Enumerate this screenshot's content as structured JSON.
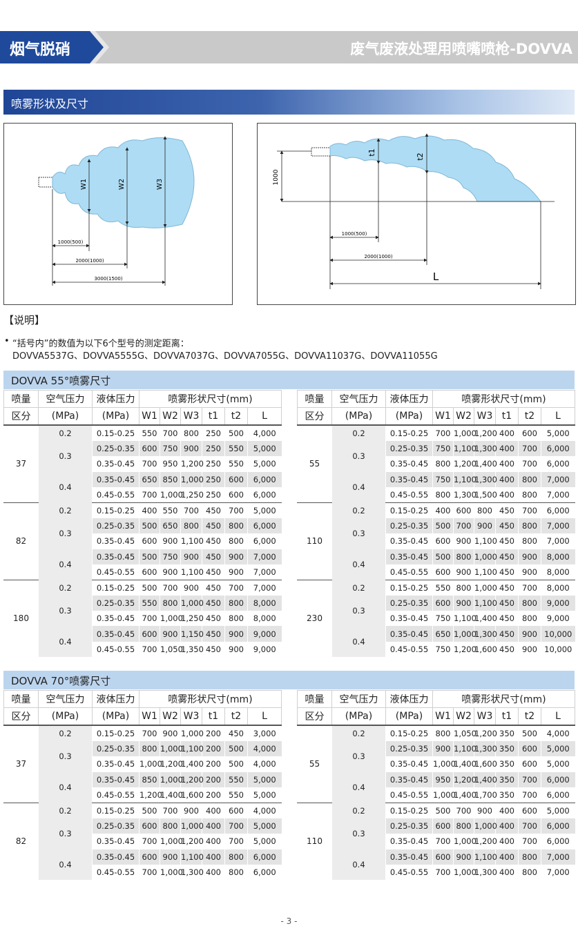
{
  "header": {
    "left_title": "烟气脱硝",
    "right_title": "废气废液处理用喷嘴喷枪-DOVVA"
  },
  "section_title": "喷雾形状及尺寸",
  "diagrams": {
    "left": {
      "w1": "W1",
      "w2": "W2",
      "w3": "W3",
      "d1": "1000(500)",
      "d2": "2000(1000)",
      "d3": "3000(1500)"
    },
    "right": {
      "height": "1000",
      "t1": "t1",
      "t2": "t2",
      "d1": "1000(500)",
      "d2": "2000(1000)",
      "l": "L"
    }
  },
  "notes": {
    "heading": "【说明】",
    "bullet": "“括号内”的数值为以下6个型号的测定距离：",
    "models": "DOVVA5537G、DOVVA5555G、DOVVA7037G、DOVVA7055G、DOVVA11037G、DOVVA11055G"
  },
  "tables": [
    {
      "title": "DOVVA 55°喷雾尺寸",
      "header_row1": [
        "喷量",
        "空气压力",
        "液体压力",
        "喷雾形状尺寸(mm)"
      ],
      "header_row2": [
        "区分",
        "(MPa)",
        "(MPa)",
        "W1",
        "W2",
        "W3",
        "t1",
        "t2",
        "L"
      ],
      "left": [
        {
          "flow": "37",
          "pressures": [
            {
              "air": "0.2",
              "rows": [
                [
                  "0.15-0.25",
                  "550",
                  "700",
                  "800",
                  "250",
                  "500",
                  "4,000"
                ]
              ]
            },
            {
              "air": "0.3",
              "rows": [
                [
                  "0.25-0.35",
                  "600",
                  "750",
                  "900",
                  "250",
                  "550",
                  "5,000"
                ],
                [
                  "0.35-0.45",
                  "700",
                  "950",
                  "1,200",
                  "250",
                  "550",
                  "5,000"
                ]
              ]
            },
            {
              "air": "0.4",
              "rows": [
                [
                  "0.35-0.45",
                  "650",
                  "850",
                  "1,000",
                  "250",
                  "600",
                  "6,000"
                ],
                [
                  "0.45-0.55",
                  "700",
                  "1,000",
                  "1,250",
                  "250",
                  "600",
                  "6,000"
                ]
              ]
            }
          ]
        },
        {
          "flow": "82",
          "pressures": [
            {
              "air": "0.2",
              "rows": [
                [
                  "0.15-0.25",
                  "400",
                  "550",
                  "700",
                  "450",
                  "700",
                  "5,000"
                ]
              ]
            },
            {
              "air": "0.3",
              "rows": [
                [
                  "0.25-0.35",
                  "500",
                  "650",
                  "800",
                  "450",
                  "800",
                  "6,000"
                ],
                [
                  "0.35-0.45",
                  "600",
                  "900",
                  "1,100",
                  "450",
                  "800",
                  "6,000"
                ]
              ]
            },
            {
              "air": "0.4",
              "rows": [
                [
                  "0.35-0.45",
                  "500",
                  "750",
                  "900",
                  "450",
                  "900",
                  "7,000"
                ],
                [
                  "0.45-0.55",
                  "600",
                  "900",
                  "1,100",
                  "450",
                  "900",
                  "7,000"
                ]
              ]
            }
          ]
        },
        {
          "flow": "180",
          "pressures": [
            {
              "air": "0.2",
              "rows": [
                [
                  "0.15-0.25",
                  "500",
                  "700",
                  "900",
                  "450",
                  "700",
                  "7,000"
                ]
              ]
            },
            {
              "air": "0.3",
              "rows": [
                [
                  "0.25-0.35",
                  "550",
                  "800",
                  "1,000",
                  "450",
                  "800",
                  "8,000"
                ],
                [
                  "0.35-0.45",
                  "700",
                  "1,000",
                  "1,250",
                  "450",
                  "800",
                  "8,000"
                ]
              ]
            },
            {
              "air": "0.4",
              "rows": [
                [
                  "0.35-0.45",
                  "600",
                  "900",
                  "1,150",
                  "450",
                  "900",
                  "9,000"
                ],
                [
                  "0.45-0.55",
                  "700",
                  "1,050",
                  "1,350",
                  "450",
                  "900",
                  "9,000"
                ]
              ]
            }
          ]
        }
      ],
      "right": [
        {
          "flow": "55",
          "pressures": [
            {
              "air": "0.2",
              "rows": [
                [
                  "0.15-0.25",
                  "700",
                  "1,000",
                  "1,200",
                  "400",
                  "600",
                  "5,000"
                ]
              ]
            },
            {
              "air": "0.3",
              "rows": [
                [
                  "0.25-0.35",
                  "750",
                  "1,100",
                  "1,300",
                  "400",
                  "700",
                  "6,000"
                ],
                [
                  "0.35-0.45",
                  "800",
                  "1,200",
                  "1,400",
                  "400",
                  "700",
                  "6,000"
                ]
              ]
            },
            {
              "air": "0.4",
              "rows": [
                [
                  "0.35-0.45",
                  "750",
                  "1,100",
                  "1,300",
                  "400",
                  "800",
                  "7,000"
                ],
                [
                  "0.45-0.55",
                  "800",
                  "1,300",
                  "1,500",
                  "400",
                  "800",
                  "7,000"
                ]
              ]
            }
          ]
        },
        {
          "flow": "110",
          "pressures": [
            {
              "air": "0.2",
              "rows": [
                [
                  "0.15-0.25",
                  "400",
                  "600",
                  "800",
                  "450",
                  "700",
                  "6,000"
                ]
              ]
            },
            {
              "air": "0.3",
              "rows": [
                [
                  "0.25-0.35",
                  "500",
                  "700",
                  "900",
                  "450",
                  "800",
                  "7,000"
                ],
                [
                  "0.35-0.45",
                  "600",
                  "900",
                  "1,100",
                  "450",
                  "800",
                  "7,000"
                ]
              ]
            },
            {
              "air": "0.4",
              "rows": [
                [
                  "0.35-0.45",
                  "500",
                  "800",
                  "1,000",
                  "450",
                  "900",
                  "8,000"
                ],
                [
                  "0.45-0.55",
                  "600",
                  "900",
                  "1,100",
                  "450",
                  "900",
                  "8,000"
                ]
              ]
            }
          ]
        },
        {
          "flow": "230",
          "pressures": [
            {
              "air": "0.2",
              "rows": [
                [
                  "0.15-0.25",
                  "550",
                  "800",
                  "1,000",
                  "450",
                  "700",
                  "8,000"
                ]
              ]
            },
            {
              "air": "0.3",
              "rows": [
                [
                  "0.25-0.35",
                  "600",
                  "900",
                  "1,100",
                  "450",
                  "800",
                  "9,000"
                ],
                [
                  "0.35-0.45",
                  "750",
                  "1,100",
                  "1,400",
                  "450",
                  "800",
                  "9,000"
                ]
              ]
            },
            {
              "air": "0.4",
              "rows": [
                [
                  "0.35-0.45",
                  "650",
                  "1,000",
                  "1,300",
                  "450",
                  "900",
                  "10,000"
                ],
                [
                  "0.45-0.55",
                  "750",
                  "1,200",
                  "1,600",
                  "450",
                  "900",
                  "10,000"
                ]
              ]
            }
          ]
        }
      ]
    },
    {
      "title": "DOVVA 70°喷雾尺寸",
      "header_row1": [
        "喷量",
        "空气压力",
        "液体压力",
        "喷雾形状尺寸(mm)"
      ],
      "header_row2": [
        "区分",
        "(MPa)",
        "(MPa)",
        "W1",
        "W2",
        "W3",
        "t1",
        "t2",
        "L"
      ],
      "left": [
        {
          "flow": "37",
          "pressures": [
            {
              "air": "0.2",
              "rows": [
                [
                  "0.15-0.25",
                  "700",
                  "900",
                  "1,000",
                  "200",
                  "450",
                  "3,000"
                ]
              ]
            },
            {
              "air": "0.3",
              "rows": [
                [
                  "0.25-0.35",
                  "800",
                  "1,000",
                  "1,100",
                  "200",
                  "500",
                  "4,000"
                ],
                [
                  "0.35-0.45",
                  "1,000",
                  "1,200",
                  "1,400",
                  "200",
                  "500",
                  "4,000"
                ]
              ]
            },
            {
              "air": "0.4",
              "rows": [
                [
                  "0.35-0.45",
                  "850",
                  "1,000",
                  "1,200",
                  "200",
                  "550",
                  "5,000"
                ],
                [
                  "0.45-0.55",
                  "1,200",
                  "1,400",
                  "1,600",
                  "200",
                  "550",
                  "5,000"
                ]
              ]
            }
          ]
        },
        {
          "flow": "82",
          "pressures": [
            {
              "air": "0.2",
              "rows": [
                [
                  "0.15-0.25",
                  "500",
                  "700",
                  "900",
                  "400",
                  "600",
                  "4,000"
                ]
              ]
            },
            {
              "air": "0.3",
              "rows": [
                [
                  "0.25-0.35",
                  "600",
                  "800",
                  "1,000",
                  "400",
                  "700",
                  "5,000"
                ],
                [
                  "0.35-0.45",
                  "700",
                  "1,000",
                  "1,200",
                  "400",
                  "700",
                  "5,000"
                ]
              ]
            },
            {
              "air": "0.4",
              "rows": [
                [
                  "0.35-0.45",
                  "600",
                  "900",
                  "1,100",
                  "400",
                  "800",
                  "6,000"
                ],
                [
                  "0.45-0.55",
                  "700",
                  "1,000",
                  "1,300",
                  "400",
                  "800",
                  "6,000"
                ]
              ]
            }
          ]
        }
      ],
      "right": [
        {
          "flow": "55",
          "pressures": [
            {
              "air": "0.2",
              "rows": [
                [
                  "0.15-0.25",
                  "800",
                  "1,050",
                  "1,200",
                  "350",
                  "500",
                  "4,000"
                ]
              ]
            },
            {
              "air": "0.3",
              "rows": [
                [
                  "0.25-0.35",
                  "900",
                  "1,100",
                  "1,300",
                  "350",
                  "600",
                  "5,000"
                ],
                [
                  "0.35-0.45",
                  "1,000",
                  "1,400",
                  "1,600",
                  "350",
                  "600",
                  "5,000"
                ]
              ]
            },
            {
              "air": "0.4",
              "rows": [
                [
                  "0.35-0.45",
                  "950",
                  "1,200",
                  "1,400",
                  "350",
                  "700",
                  "6,000"
                ],
                [
                  "0.45-0.55",
                  "1,000",
                  "1,400",
                  "1,700",
                  "350",
                  "700",
                  "6,000"
                ]
              ]
            }
          ]
        },
        {
          "flow": "110",
          "pressures": [
            {
              "air": "0.2",
              "rows": [
                [
                  "0.15-0.25",
                  "500",
                  "700",
                  "900",
                  "400",
                  "600",
                  "5,000"
                ]
              ]
            },
            {
              "air": "0.3",
              "rows": [
                [
                  "0.25-0.35",
                  "600",
                  "800",
                  "1,000",
                  "400",
                  "700",
                  "6,000"
                ],
                [
                  "0.35-0.45",
                  "700",
                  "1,000",
                  "1,200",
                  "400",
                  "700",
                  "6,000"
                ]
              ]
            },
            {
              "air": "0.4",
              "rows": [
                [
                  "0.35-0.45",
                  "600",
                  "900",
                  "1,100",
                  "400",
                  "800",
                  "7,000"
                ],
                [
                  "0.45-0.55",
                  "700",
                  "1,000",
                  "1,300",
                  "400",
                  "800",
                  "7,000"
                ]
              ]
            }
          ]
        }
      ]
    }
  ],
  "footer": "- 3 -"
}
